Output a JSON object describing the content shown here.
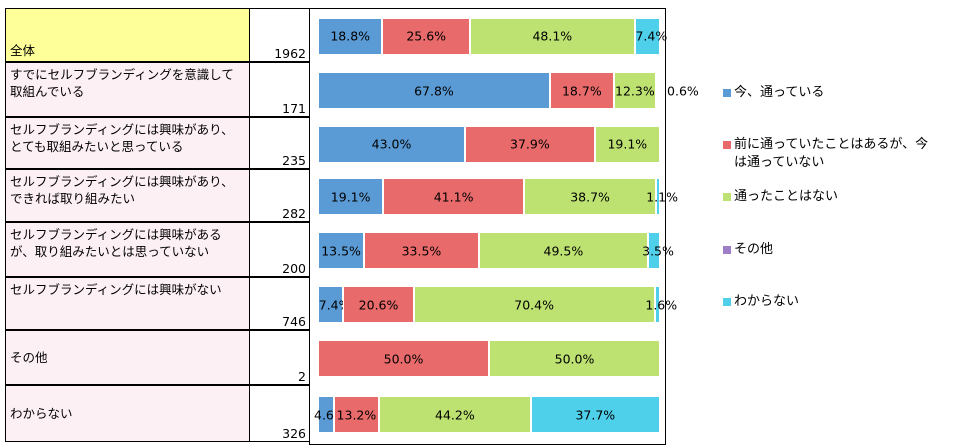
{
  "chart_data": {
    "type": "bar",
    "orientation": "horizontal",
    "stacked": "percent",
    "categories": [
      "全体",
      "すでにセルフブランディングを意識して取組んでいる",
      "セルフブランディングには興味があり、とても取組みたいと思っている",
      "セルフブランディングには興味があり、できれば取り組みたい",
      "セルフブランディングには興味があるが、取り組みたいとは思っていない",
      "セルフブランディングには興味がない",
      "その他",
      "わからない"
    ],
    "category_lines": [
      [
        "全体"
      ],
      [
        "すでにセルフブランディングを意識して",
        "取組んでいる"
      ],
      [
        "セルフブランディングには興味があり、",
        "とても取組みたいと思っている"
      ],
      [
        "セルフブランディングには興味があり、",
        "できれば取り組みたい"
      ],
      [
        "セルフブランディングには興味がある",
        "が、取り組みたいとは思っていない"
      ],
      [
        "セルフブランディングには興味がない"
      ],
      [
        "その他"
      ],
      [
        "わからない"
      ]
    ],
    "counts": [
      "1962",
      "171",
      "235",
      "282",
      "200",
      "746",
      "2",
      "326"
    ],
    "series": [
      {
        "name": "今、通っている",
        "color": "#5b9bd5",
        "values": [
          18.8,
          67.8,
          43.0,
          19.1,
          13.5,
          7.4,
          0,
          4.6
        ],
        "labels": [
          "18.8%",
          "67.8%",
          "43.0%",
          "19.1%",
          "13.5%",
          "7.4%",
          "",
          "4.6%"
        ]
      },
      {
        "name": "前に通っていたことはあるが、今は通っていない",
        "color": "#e96a6a",
        "values": [
          25.6,
          18.7,
          37.9,
          41.1,
          33.5,
          20.6,
          50.0,
          13.2
        ],
        "labels": [
          "25.6%",
          "18.7%",
          "37.9%",
          "41.1%",
          "33.5%",
          "20.6%",
          "50.0%",
          "13.2%"
        ]
      },
      {
        "name": "通ったことはない",
        "color": "#bde271",
        "values": [
          48.1,
          12.3,
          19.1,
          38.7,
          49.5,
          70.4,
          50.0,
          44.2
        ],
        "labels": [
          "48.1%",
          "12.3%",
          "19.1%",
          "38.7%",
          "49.5%",
          "70.4%",
          "50.0%",
          "44.2%"
        ]
      },
      {
        "name": "その他",
        "color": "#9e7fc7",
        "values": [
          0,
          0.6,
          0,
          0,
          0,
          0,
          0,
          0
        ],
        "labels": [
          "",
          "0.6%",
          "",
          "",
          "",
          "",
          "",
          ""
        ]
      },
      {
        "name": "わからない",
        "color": "#4fd0ea",
        "values": [
          7.4,
          0.6,
          0,
          1.1,
          3.5,
          1.6,
          0,
          37.7
        ],
        "labels": [
          "7.4%",
          "",
          "",
          "1.1%",
          "3.5%",
          "1.6%",
          "",
          "37.7%"
        ]
      }
    ],
    "legend_lines": [
      [
        "今、通っている"
      ],
      [
        "前に通っていたことはあるが、今",
        "は通っていない"
      ],
      [
        "通ったことはない"
      ],
      [
        "その他"
      ],
      [
        "わからない"
      ]
    ],
    "xlim": [
      0,
      100
    ],
    "legend": "right"
  }
}
